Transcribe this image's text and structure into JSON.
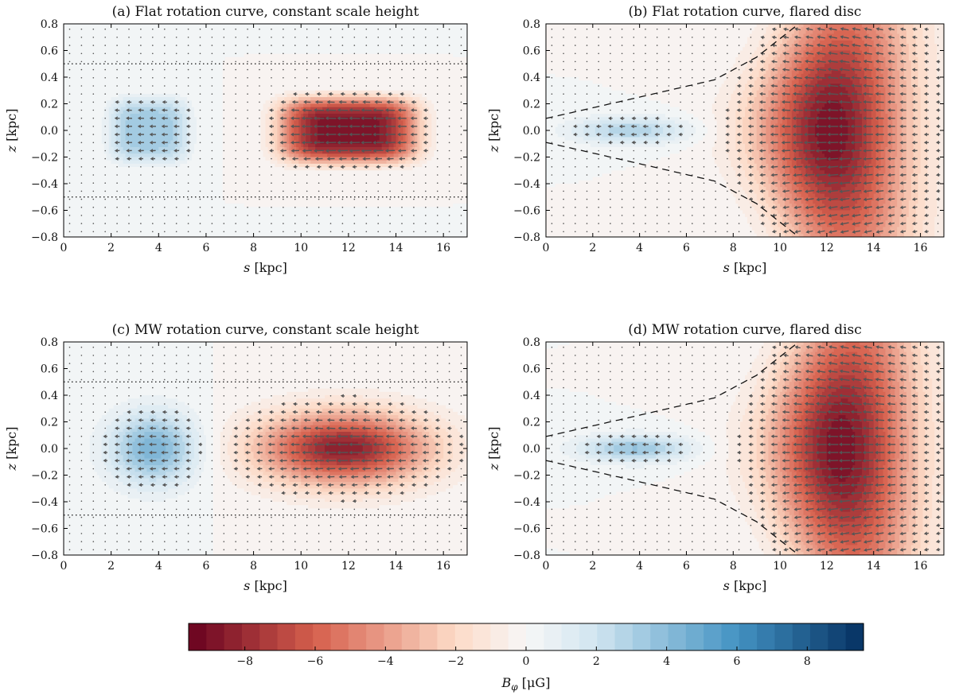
{
  "figure": {
    "description_labels": [
      "(a)",
      "(b)",
      "(c)",
      "(d)"
    ]
  },
  "chart_data": [
    {
      "type": "heatmap",
      "panel": "a",
      "title": "(a) Flat rotation curve, constant scale height",
      "xlabel_var": "s",
      "xlabel_unit": " [kpc]",
      "ylabel_var": "z",
      "ylabel_unit": " [kpc]",
      "xlim": [
        0,
        17
      ],
      "ylim": [
        -0.8,
        0.8
      ],
      "xticks": [
        0,
        2,
        4,
        6,
        8,
        10,
        12,
        14,
        16
      ],
      "xtick_labels": [
        "0",
        "2",
        "4",
        "6",
        "8",
        "10",
        "12",
        "14",
        "16"
      ],
      "yticks": [
        0.8,
        0.6,
        0.4,
        0.2,
        0.0,
        -0.2,
        -0.4,
        -0.6,
        -0.8
      ],
      "ytick_labels": [
        "0.8",
        "0.6",
        "0.4",
        "0.2",
        "0.0",
        "−0.2",
        "−0.4",
        "−0.6",
        "−0.8"
      ],
      "disc": "constant",
      "disc_half_height_kpc": 0.5,
      "field_blobs": [
        {
          "s": 3.6,
          "z": 0.0,
          "Bphi_uG": 3.4,
          "sigma_s": 1.4,
          "sigma_z": 0.2,
          "shape": 4
        },
        {
          "s": 12.0,
          "z": 0.0,
          "Bphi_uG": -9.0,
          "sigma_s": 2.4,
          "sigma_z": 0.2,
          "shape": 4
        }
      ]
    },
    {
      "type": "heatmap",
      "panel": "b",
      "title": "(b) Flat rotation curve, flared disc",
      "xlabel_var": "s",
      "xlabel_unit": " [kpc]",
      "ylabel_var": "z",
      "ylabel_unit": " [kpc]",
      "xlim": [
        0,
        17
      ],
      "ylim": [
        -0.8,
        0.8
      ],
      "xticks": [
        0,
        2,
        4,
        6,
        8,
        10,
        12,
        14,
        16
      ],
      "xtick_labels": [
        "0",
        "2",
        "4",
        "6",
        "8",
        "10",
        "12",
        "14",
        "16"
      ],
      "yticks": [
        0.8,
        0.6,
        0.4,
        0.2,
        0.0,
        -0.2,
        -0.4,
        -0.6,
        -0.8
      ],
      "ytick_labels": [
        "0.8",
        "0.6",
        "0.4",
        "0.2",
        "0.0",
        "−0.2",
        "−0.4",
        "−0.6",
        "−0.8"
      ],
      "disc": "flared",
      "flare_boundary": [
        [
          0,
          0.09
        ],
        [
          4,
          0.25
        ],
        [
          7.2,
          0.38
        ],
        [
          9,
          0.55
        ],
        [
          10.8,
          0.8
        ]
      ],
      "field_blobs": [
        {
          "s": 3.6,
          "z": 0.0,
          "Bphi_uG": 3.0,
          "sigma_s": 1.7,
          "sigma_z": 0.07,
          "shape": 2
        },
        {
          "s": 12.2,
          "z": 0.0,
          "Bphi_uG": -9.0,
          "sigma_s": 2.2,
          "sigma_z": 0.5,
          "shape": 2
        }
      ]
    },
    {
      "type": "heatmap",
      "panel": "c",
      "title": "(c) MW rotation curve, constant scale height",
      "xlabel_var": "s",
      "xlabel_unit": " [kpc]",
      "ylabel_var": "z",
      "ylabel_unit": " [kpc]",
      "xlim": [
        0,
        17
      ],
      "ylim": [
        -0.8,
        0.8
      ],
      "xticks": [
        0,
        2,
        4,
        6,
        8,
        10,
        12,
        14,
        16
      ],
      "xtick_labels": [
        "0",
        "2",
        "4",
        "6",
        "8",
        "10",
        "12",
        "14",
        "16"
      ],
      "yticks": [
        0.8,
        0.6,
        0.4,
        0.2,
        0.0,
        -0.2,
        -0.4,
        -0.6,
        -0.8
      ],
      "ytick_labels": [
        "0.8",
        "0.6",
        "0.4",
        "0.2",
        "0.0",
        "−0.2",
        "−0.4",
        "−0.6",
        "−0.8"
      ],
      "disc": "constant",
      "disc_half_height_kpc": 0.5,
      "field_blobs": [
        {
          "s": 3.8,
          "z": 0.0,
          "Bphi_uG": 4.5,
          "sigma_s": 1.3,
          "sigma_z": 0.19,
          "shape": 2
        },
        {
          "s": 11.8,
          "z": 0.0,
          "Bphi_uG": -8.5,
          "sigma_s": 2.5,
          "sigma_z": 0.19,
          "shape": 2
        }
      ]
    },
    {
      "type": "heatmap",
      "panel": "d",
      "title": "(d) MW rotation curve, flared disc",
      "xlabel_var": "s",
      "xlabel_unit": " [kpc]",
      "ylabel_var": "z",
      "ylabel_unit": " [kpc]",
      "xlim": [
        0,
        17
      ],
      "ylim": [
        -0.8,
        0.8
      ],
      "xticks": [
        0,
        2,
        4,
        6,
        8,
        10,
        12,
        14,
        16
      ],
      "xtick_labels": [
        "0",
        "2",
        "4",
        "6",
        "8",
        "10",
        "12",
        "14",
        "16"
      ],
      "yticks": [
        0.8,
        0.6,
        0.4,
        0.2,
        0.0,
        -0.2,
        -0.4,
        -0.6,
        -0.8
      ],
      "ytick_labels": [
        "0.8",
        "0.6",
        "0.4",
        "0.2",
        "0.0",
        "−0.2",
        "−0.4",
        "−0.6",
        "−0.8"
      ],
      "disc": "flared",
      "flare_boundary": [
        [
          0,
          0.09
        ],
        [
          4,
          0.25
        ],
        [
          7.2,
          0.38
        ],
        [
          9,
          0.55
        ],
        [
          10.8,
          0.8
        ]
      ],
      "field_blobs": [
        {
          "s": 3.8,
          "z": 0.0,
          "Bphi_uG": 3.6,
          "sigma_s": 1.6,
          "sigma_z": 0.07,
          "shape": 2
        },
        {
          "s": 12.6,
          "z": 0.0,
          "Bphi_uG": -9.0,
          "sigma_s": 2.1,
          "sigma_z": 0.5,
          "shape": 2
        }
      ]
    },
    {
      "type": "colorbar",
      "label_var": "B",
      "label_sub": "φ",
      "label_unit": " [μG]",
      "range": [
        -9.6,
        9.6
      ],
      "levels": 38,
      "ticks": [
        -8,
        -6,
        -4,
        -2,
        0,
        2,
        4,
        6,
        8
      ],
      "tick_labels": [
        "−8",
        "−6",
        "−4",
        "−2",
        "0",
        "2",
        "4",
        "6",
        "8"
      ],
      "colormap": "RdBu (red negative, blue positive)",
      "colors": {
        "neg_end": "#67001f",
        "neg_mid": "#d6604d",
        "neg_light": "#fddbc7",
        "zero": "#f7f7f7",
        "pos_light": "#d1e5f0",
        "pos_mid": "#4393c3",
        "pos_end": "#053061"
      }
    }
  ],
  "styles": {
    "arrow_color": "#555555",
    "guide_color": "#111111"
  }
}
